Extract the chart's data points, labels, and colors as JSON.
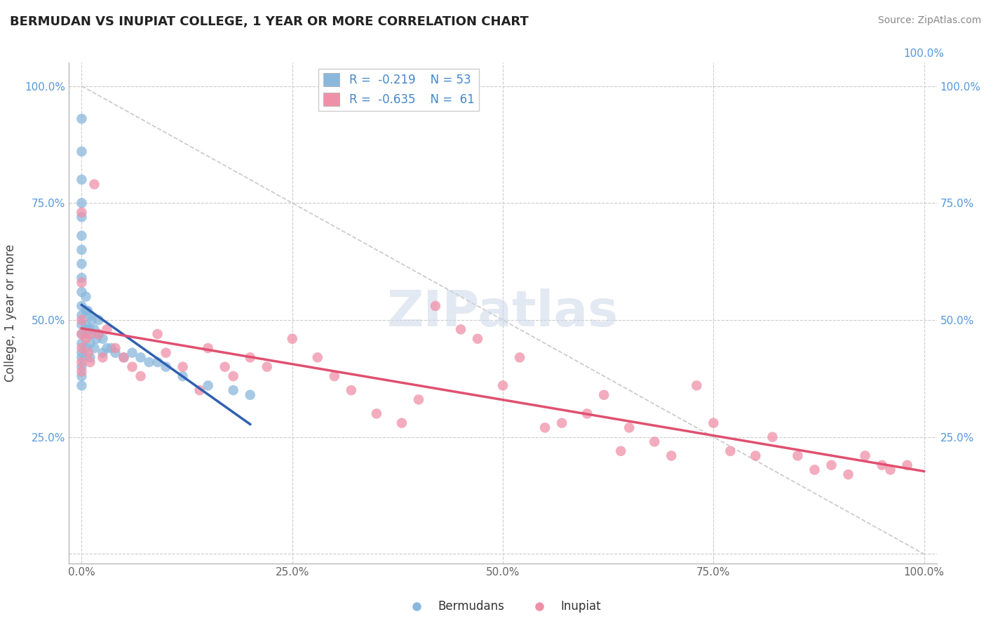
{
  "title": "BERMUDAN VS INUPIAT COLLEGE, 1 YEAR OR MORE CORRELATION CHART",
  "source": "Source: ZipAtlas.com",
  "ylabel": "College, 1 year or more",
  "xlim": [
    -0.015,
    1.015
  ],
  "ylim": [
    -0.02,
    1.05
  ],
  "xticks": [
    0.0,
    0.25,
    0.5,
    0.75,
    1.0
  ],
  "yticks": [
    0.0,
    0.25,
    0.5,
    0.75,
    1.0
  ],
  "xtick_labels": [
    "0.0%",
    "25.0%",
    "50.0%",
    "75.0%",
    "100.0%"
  ],
  "ytick_labels_left": [
    "",
    "25.0%",
    "50.0%",
    "75.0%",
    "100.0%"
  ],
  "ytick_labels_right": [
    "",
    "25.0%",
    "50.0%",
    "75.0%",
    "100.0%"
  ],
  "legend_r_label1": "R =  -0.219    N = 53",
  "legend_r_label2": "R =  -0.635    N =  61",
  "legend_label_bermudans": "Bermudans",
  "legend_label_inupiat": "Inupiat",
  "watermark": "ZIPatlas",
  "bermudans_color": "#8ab8dc",
  "inupiat_color": "#f090a8",
  "trend_bermudans_color": "#3060b0",
  "trend_inupiat_color": "#e05070",
  "diag_color": "#bbbbbb",
  "bermudans_x": [
    0.0,
    0.0,
    0.0,
    0.0,
    0.0,
    0.0,
    0.0,
    0.0,
    0.0,
    0.0,
    0.0,
    0.0,
    0.0,
    0.0,
    0.0,
    0.0,
    0.0,
    0.0,
    0.0,
    0.0,
    0.005,
    0.005,
    0.005,
    0.005,
    0.005,
    0.007,
    0.007,
    0.01,
    0.01,
    0.01,
    0.01,
    0.012,
    0.012,
    0.015,
    0.015,
    0.018,
    0.02,
    0.02,
    0.025,
    0.025,
    0.03,
    0.035,
    0.04,
    0.05,
    0.06,
    0.07,
    0.08,
    0.09,
    0.1,
    0.12,
    0.15,
    0.18,
    0.2
  ],
  "bermudans_y": [
    0.93,
    0.86,
    0.8,
    0.75,
    0.72,
    0.68,
    0.65,
    0.62,
    0.59,
    0.56,
    0.53,
    0.51,
    0.49,
    0.47,
    0.45,
    0.43,
    0.42,
    0.4,
    0.38,
    0.36,
    0.55,
    0.52,
    0.49,
    0.47,
    0.44,
    0.52,
    0.48,
    0.51,
    0.48,
    0.45,
    0.42,
    0.5,
    0.47,
    0.48,
    0.44,
    0.46,
    0.5,
    0.47,
    0.46,
    0.43,
    0.44,
    0.44,
    0.43,
    0.42,
    0.43,
    0.42,
    0.41,
    0.41,
    0.4,
    0.38,
    0.36,
    0.35,
    0.34
  ],
  "inupiat_x": [
    0.0,
    0.0,
    0.0,
    0.0,
    0.0,
    0.0,
    0.0,
    0.005,
    0.008,
    0.01,
    0.01,
    0.015,
    0.02,
    0.025,
    0.03,
    0.04,
    0.05,
    0.06,
    0.07,
    0.09,
    0.1,
    0.12,
    0.14,
    0.15,
    0.17,
    0.18,
    0.2,
    0.22,
    0.25,
    0.28,
    0.3,
    0.32,
    0.35,
    0.38,
    0.4,
    0.42,
    0.45,
    0.47,
    0.5,
    0.52,
    0.55,
    0.57,
    0.6,
    0.62,
    0.64,
    0.65,
    0.68,
    0.7,
    0.73,
    0.75,
    0.77,
    0.8,
    0.82,
    0.85,
    0.87,
    0.89,
    0.91,
    0.93,
    0.95,
    0.96,
    0.98
  ],
  "inupiat_y": [
    0.73,
    0.58,
    0.5,
    0.47,
    0.44,
    0.41,
    0.39,
    0.46,
    0.43,
    0.47,
    0.41,
    0.79,
    0.47,
    0.42,
    0.48,
    0.44,
    0.42,
    0.4,
    0.38,
    0.47,
    0.43,
    0.4,
    0.35,
    0.44,
    0.4,
    0.38,
    0.42,
    0.4,
    0.46,
    0.42,
    0.38,
    0.35,
    0.3,
    0.28,
    0.33,
    0.53,
    0.48,
    0.46,
    0.36,
    0.42,
    0.27,
    0.28,
    0.3,
    0.34,
    0.22,
    0.27,
    0.24,
    0.21,
    0.36,
    0.28,
    0.22,
    0.21,
    0.25,
    0.21,
    0.18,
    0.19,
    0.17,
    0.21,
    0.19,
    0.18,
    0.19
  ]
}
